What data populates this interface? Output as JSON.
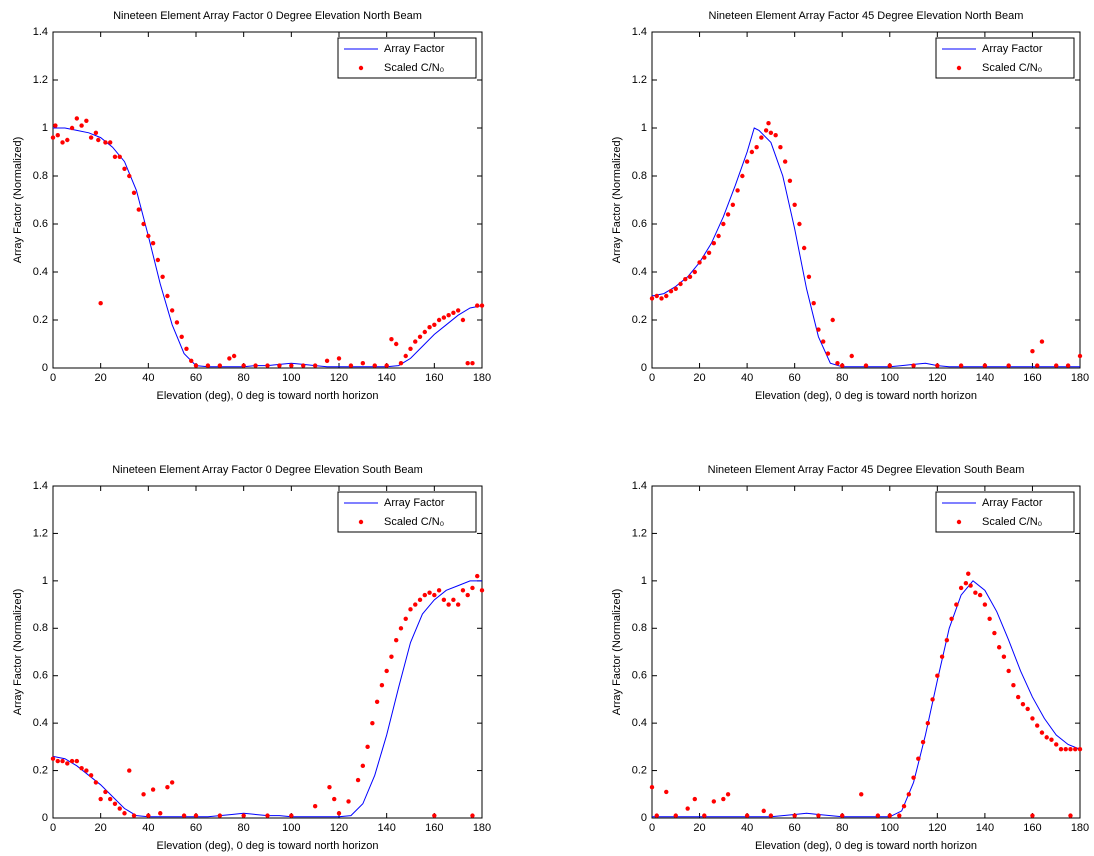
{
  "chart_data": [
    {
      "type": "line",
      "title": "Nineteen Element Array Factor 0 Degree Elevation North Beam",
      "x_label": "Elevation (deg), 0 deg is toward north horizon",
      "y_label": "Array Factor (Normalized)",
      "xlim": [
        0,
        180
      ],
      "ylim": [
        0,
        1.4
      ],
      "xticks": [
        0,
        20,
        40,
        60,
        80,
        100,
        120,
        140,
        160,
        180
      ],
      "yticks": [
        0,
        0.2,
        0.4,
        0.6,
        0.8,
        1,
        1.2,
        1.4
      ],
      "legend": "northeast",
      "series": [
        {
          "name": "Array Factor",
          "color": "#0000ff",
          "mode": "lines",
          "x": [
            0,
            5,
            10,
            15,
            20,
            25,
            30,
            35,
            40,
            45,
            50,
            55,
            60,
            65,
            70,
            75,
            80,
            85,
            90,
            95,
            100,
            105,
            110,
            115,
            120,
            125,
            130,
            135,
            140,
            145,
            150,
            155,
            160,
            165,
            170,
            175,
            180
          ],
          "values": [
            1.0,
            1.0,
            0.99,
            0.98,
            0.96,
            0.92,
            0.86,
            0.74,
            0.55,
            0.35,
            0.18,
            0.06,
            0.01,
            0.005,
            0.005,
            0.005,
            0.005,
            0.01,
            0.01,
            0.015,
            0.02,
            0.015,
            0.01,
            0.005,
            0.005,
            0.005,
            0.005,
            0.005,
            0.005,
            0.01,
            0.04,
            0.09,
            0.14,
            0.18,
            0.22,
            0.25,
            0.26
          ]
        },
        {
          "name": "Scaled C/N₀",
          "color": "#ff0000",
          "mode": "markers",
          "x": [
            0,
            1,
            2,
            4,
            6,
            8,
            10,
            12,
            14,
            16,
            18,
            19,
            20,
            22,
            24,
            26,
            28,
            30,
            32,
            34,
            36,
            38,
            40,
            42,
            44,
            46,
            48,
            50,
            52,
            54,
            56,
            58,
            60,
            65,
            70,
            74,
            76,
            80,
            85,
            90,
            95,
            100,
            105,
            110,
            115,
            120,
            125,
            130,
            135,
            140,
            142,
            144,
            146,
            148,
            150,
            152,
            154,
            156,
            158,
            160,
            162,
            164,
            166,
            168,
            170,
            172,
            174,
            176,
            178,
            180
          ],
          "values": [
            0.96,
            1.01,
            0.97,
            0.94,
            0.95,
            1.0,
            1.04,
            1.01,
            1.03,
            0.96,
            0.98,
            0.95,
            0.27,
            0.94,
            0.94,
            0.88,
            0.88,
            0.83,
            0.8,
            0.73,
            0.66,
            0.6,
            0.55,
            0.52,
            0.45,
            0.38,
            0.3,
            0.24,
            0.19,
            0.13,
            0.08,
            0.03,
            0.01,
            0.01,
            0.01,
            0.04,
            0.05,
            0.01,
            0.01,
            0.01,
            0.01,
            0.01,
            0.01,
            0.01,
            0.03,
            0.04,
            0.01,
            0.02,
            0.01,
            0.01,
            0.12,
            0.1,
            0.02,
            0.05,
            0.08,
            0.11,
            0.13,
            0.15,
            0.17,
            0.18,
            0.2,
            0.21,
            0.22,
            0.23,
            0.24,
            0.2,
            0.02,
            0.02,
            0.26,
            0.26
          ]
        }
      ]
    },
    {
      "type": "line",
      "title": "Nineteen Element Array Factor 45 Degree Elevation North Beam",
      "x_label": "Elevation (deg), 0 deg is toward north horizon",
      "y_label": "Array Factor (Normalized)",
      "xlim": [
        0,
        180
      ],
      "ylim": [
        0,
        1.4
      ],
      "xticks": [
        0,
        20,
        40,
        60,
        80,
        100,
        120,
        140,
        160,
        180
      ],
      "yticks": [
        0,
        0.2,
        0.4,
        0.6,
        0.8,
        1,
        1.2,
        1.4
      ],
      "legend": "northeast",
      "series": [
        {
          "name": "Array Factor",
          "color": "#0000ff",
          "mode": "lines",
          "x": [
            0,
            5,
            10,
            15,
            20,
            25,
            30,
            35,
            40,
            43,
            45,
            50,
            55,
            60,
            65,
            70,
            75,
            80,
            85,
            90,
            95,
            100,
            105,
            110,
            115,
            120,
            125,
            130,
            135,
            140,
            145,
            150,
            155,
            160,
            165,
            170,
            175,
            180
          ],
          "values": [
            0.3,
            0.31,
            0.34,
            0.38,
            0.44,
            0.52,
            0.63,
            0.76,
            0.9,
            1.0,
            0.99,
            0.94,
            0.8,
            0.58,
            0.33,
            0.13,
            0.02,
            0.005,
            0.005,
            0.005,
            0.005,
            0.005,
            0.01,
            0.015,
            0.02,
            0.01,
            0.005,
            0.005,
            0.005,
            0.005,
            0.005,
            0.005,
            0.005,
            0.005,
            0.005,
            0.005,
            0.005,
            0.005
          ]
        },
        {
          "name": "Scaled C/N₀",
          "color": "#ff0000",
          "mode": "markers",
          "x": [
            0,
            2,
            4,
            6,
            8,
            10,
            12,
            14,
            16,
            18,
            20,
            22,
            24,
            26,
            28,
            30,
            32,
            34,
            36,
            38,
            40,
            42,
            44,
            46,
            48,
            49,
            50,
            52,
            54,
            56,
            58,
            60,
            62,
            64,
            66,
            68,
            70,
            72,
            74,
            76,
            78,
            80,
            84,
            90,
            100,
            110,
            120,
            130,
            140,
            150,
            160,
            162,
            164,
            170,
            175,
            180
          ],
          "values": [
            0.29,
            0.3,
            0.29,
            0.3,
            0.32,
            0.33,
            0.35,
            0.37,
            0.38,
            0.4,
            0.44,
            0.46,
            0.48,
            0.52,
            0.55,
            0.6,
            0.64,
            0.68,
            0.74,
            0.8,
            0.86,
            0.9,
            0.92,
            0.96,
            0.99,
            1.02,
            0.98,
            0.97,
            0.92,
            0.86,
            0.78,
            0.68,
            0.6,
            0.5,
            0.38,
            0.27,
            0.16,
            0.11,
            0.06,
            0.2,
            0.02,
            0.01,
            0.05,
            0.01,
            0.01,
            0.01,
            0.01,
            0.01,
            0.01,
            0.01,
            0.07,
            0.01,
            0.11,
            0.01,
            0.01,
            0.05
          ]
        }
      ]
    },
    {
      "type": "line",
      "title": "Nineteen Element Array Factor 0 Degree Elevation South Beam",
      "x_label": "Elevation (deg), 0 deg is toward north horizon",
      "y_label": "Array Factor (Normalized)",
      "xlim": [
        0,
        180
      ],
      "ylim": [
        0,
        1.4
      ],
      "xticks": [
        0,
        20,
        40,
        60,
        80,
        100,
        120,
        140,
        160,
        180
      ],
      "yticks": [
        0,
        0.2,
        0.4,
        0.6,
        0.8,
        1,
        1.2,
        1.4
      ],
      "legend": "northeast",
      "series": [
        {
          "name": "Array Factor",
          "color": "#0000ff",
          "mode": "lines",
          "x": [
            0,
            5,
            10,
            15,
            20,
            25,
            30,
            35,
            40,
            45,
            50,
            55,
            60,
            65,
            70,
            75,
            80,
            85,
            90,
            95,
            100,
            105,
            110,
            115,
            120,
            125,
            130,
            135,
            140,
            145,
            150,
            155,
            160,
            165,
            170,
            175,
            180
          ],
          "values": [
            0.26,
            0.25,
            0.22,
            0.18,
            0.14,
            0.09,
            0.04,
            0.01,
            0.005,
            0.005,
            0.005,
            0.005,
            0.005,
            0.005,
            0.01,
            0.015,
            0.02,
            0.015,
            0.01,
            0.01,
            0.005,
            0.005,
            0.005,
            0.005,
            0.005,
            0.01,
            0.06,
            0.18,
            0.35,
            0.55,
            0.74,
            0.86,
            0.92,
            0.96,
            0.98,
            1.0,
            1.0
          ]
        },
        {
          "name": "Scaled C/N₀",
          "color": "#ff0000",
          "mode": "markers",
          "x": [
            0,
            2,
            4,
            6,
            8,
            10,
            12,
            14,
            16,
            18,
            20,
            22,
            24,
            26,
            28,
            30,
            32,
            34,
            38,
            40,
            42,
            45,
            48,
            50,
            55,
            60,
            70,
            80,
            90,
            100,
            110,
            116,
            118,
            120,
            124,
            128,
            130,
            132,
            134,
            136,
            138,
            140,
            142,
            144,
            146,
            148,
            150,
            152,
            154,
            156,
            158,
            160,
            160,
            162,
            164,
            166,
            168,
            170,
            172,
            174,
            176,
            176,
            178,
            180
          ],
          "values": [
            0.25,
            0.24,
            0.24,
            0.23,
            0.24,
            0.24,
            0.21,
            0.2,
            0.18,
            0.15,
            0.08,
            0.11,
            0.08,
            0.06,
            0.04,
            0.02,
            0.2,
            0.01,
            0.1,
            0.01,
            0.12,
            0.02,
            0.13,
            0.15,
            0.01,
            0.01,
            0.01,
            0.01,
            0.01,
            0.01,
            0.05,
            0.13,
            0.08,
            0.02,
            0.07,
            0.16,
            0.22,
            0.3,
            0.4,
            0.49,
            0.56,
            0.62,
            0.68,
            0.75,
            0.8,
            0.84,
            0.88,
            0.9,
            0.92,
            0.94,
            0.95,
            0.94,
            0.01,
            0.96,
            0.92,
            0.9,
            0.92,
            0.9,
            0.96,
            0.94,
            0.97,
            0.01,
            1.02,
            0.96
          ]
        }
      ]
    },
    {
      "type": "line",
      "title": "Nineteen Element Array Factor 45 Degree Elevation South Beam",
      "x_label": "Elevation (deg), 0 deg is toward north horizon",
      "y_label": "Array Factor (Normalized)",
      "xlim": [
        0,
        180
      ],
      "ylim": [
        0,
        1.4
      ],
      "xticks": [
        0,
        20,
        40,
        60,
        80,
        100,
        120,
        140,
        160,
        180
      ],
      "yticks": [
        0,
        0.2,
        0.4,
        0.6,
        0.8,
        1,
        1.2,
        1.4
      ],
      "legend": "northeast",
      "series": [
        {
          "name": "Array Factor",
          "color": "#0000ff",
          "mode": "lines",
          "x": [
            0,
            10,
            20,
            30,
            40,
            50,
            55,
            60,
            65,
            70,
            75,
            80,
            90,
            100,
            105,
            110,
            115,
            120,
            125,
            130,
            135,
            140,
            145,
            150,
            155,
            160,
            165,
            170,
            175,
            180
          ],
          "values": [
            0.005,
            0.005,
            0.005,
            0.005,
            0.005,
            0.005,
            0.01,
            0.015,
            0.02,
            0.015,
            0.01,
            0.005,
            0.005,
            0.005,
            0.03,
            0.15,
            0.35,
            0.58,
            0.8,
            0.94,
            1.0,
            0.96,
            0.87,
            0.75,
            0.62,
            0.51,
            0.42,
            0.35,
            0.31,
            0.29
          ]
        },
        {
          "name": "Scaled C/N₀",
          "color": "#ff0000",
          "mode": "markers",
          "x": [
            0,
            2,
            6,
            10,
            15,
            18,
            22,
            26,
            30,
            32,
            40,
            47,
            50,
            60,
            70,
            80,
            88,
            95,
            100,
            104,
            106,
            108,
            110,
            112,
            114,
            116,
            118,
            120,
            122,
            124,
            126,
            128,
            130,
            132,
            133,
            134,
            136,
            138,
            140,
            142,
            144,
            146,
            148,
            150,
            152,
            154,
            156,
            158,
            160,
            160,
            162,
            164,
            166,
            168,
            170,
            172,
            174,
            176,
            176,
            178,
            180
          ],
          "values": [
            0.13,
            0.01,
            0.11,
            0.01,
            0.04,
            0.08,
            0.01,
            0.07,
            0.08,
            0.1,
            0.01,
            0.03,
            0.01,
            0.01,
            0.01,
            0.01,
            0.1,
            0.01,
            0.01,
            0.01,
            0.05,
            0.1,
            0.17,
            0.25,
            0.32,
            0.4,
            0.5,
            0.6,
            0.68,
            0.75,
            0.84,
            0.9,
            0.97,
            0.99,
            1.03,
            0.98,
            0.95,
            0.94,
            0.9,
            0.84,
            0.78,
            0.72,
            0.68,
            0.62,
            0.56,
            0.51,
            0.48,
            0.46,
            0.42,
            0.01,
            0.39,
            0.36,
            0.34,
            0.33,
            0.31,
            0.29,
            0.29,
            0.29,
            0.01,
            0.29,
            0.29
          ]
        }
      ]
    }
  ]
}
